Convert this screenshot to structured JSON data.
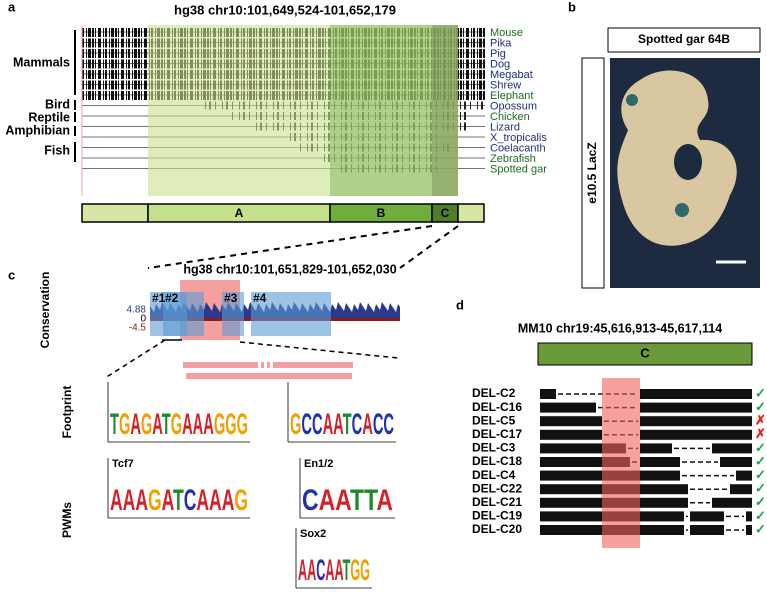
{
  "panel_labels": [
    "a",
    "b",
    "c",
    "d"
  ],
  "a": {
    "title": "hg38 chr10:101,649,524-101,652,179",
    "species": [
      {
        "name": "Mouse",
        "color": "#1e6b1e"
      },
      {
        "name": "Pika",
        "color": "#1f2f7a"
      },
      {
        "name": "Pig",
        "color": "#1f2f7a"
      },
      {
        "name": "Dog",
        "color": "#1f2f7a"
      },
      {
        "name": "Megabat",
        "color": "#1f2f7a"
      },
      {
        "name": "Shrew",
        "color": "#1f2f7a"
      },
      {
        "name": "Elephant",
        "color": "#1e6b1e"
      },
      {
        "name": "Opossum",
        "color": "#1f2f7a"
      },
      {
        "name": "Chicken",
        "color": "#1e6b1e"
      },
      {
        "name": "Lizard",
        "color": "#1f2f7a"
      },
      {
        "name": "X_tropicalis",
        "color": "#1f2f7a"
      },
      {
        "name": "Coelacanth",
        "color": "#1f2f7a"
      },
      {
        "name": "Zebrafish",
        "color": "#1e6b1e"
      },
      {
        "name": "Spotted gar",
        "color": "#1e6b1e"
      }
    ],
    "groups": [
      "Mammals",
      "Bird",
      "Reptile",
      "Amphibian",
      "Fish"
    ],
    "regions": [
      "A",
      "B",
      "C"
    ]
  },
  "b": {
    "title": "Spotted gar 64B",
    "stage": "e10.5 LacZ"
  },
  "c": {
    "title": "hg38 chr10:101,651,829-101,652,030",
    "track_label": "Conservation",
    "scale": [
      4.88,
      0,
      -4.5
    ],
    "elements": [
      "#1",
      "#2",
      "#3",
      "#4"
    ],
    "footprint_label": "Footprint",
    "pwm_label": "PWMs",
    "logos": [
      {
        "sequence": "TGAGATGAAAGGG"
      },
      {
        "sequence": "GCCAATCACC"
      },
      {
        "name": "Tcf7",
        "sequence": "AAAGATCAAAG"
      },
      {
        "name": "En1/2",
        "sequence": "CAATTA"
      },
      {
        "name": "Sox2",
        "sequence": "AACAATGG"
      }
    ]
  },
  "d": {
    "title": "MM10 chr19:45,616,913-45,617,114",
    "region": "C",
    "deletions": [
      {
        "name": "DEL-C2",
        "result": "✓",
        "color": "#1aa34a"
      },
      {
        "name": "DEL-C16",
        "result": "✓",
        "color": "#1aa34a"
      },
      {
        "name": "DEL-C5",
        "result": "✗",
        "color": "#e0201b"
      },
      {
        "name": "DEL-C17",
        "result": "✗",
        "color": "#e0201b"
      },
      {
        "name": "DEL-C3",
        "result": "✓",
        "color": "#1aa34a"
      },
      {
        "name": "DEL-C18",
        "result": "✓",
        "color": "#1aa34a"
      },
      {
        "name": "DEL-C4",
        "result": "✓",
        "color": "#1aa34a"
      },
      {
        "name": "DEL-C22",
        "result": "✓",
        "color": "#1aa34a"
      },
      {
        "name": "DEL-C21",
        "result": "✓",
        "color": "#1aa34a"
      },
      {
        "name": "DEL-C19",
        "result": "✓",
        "color": "#1aa34a"
      },
      {
        "name": "DEL-C20",
        "result": "✓",
        "color": "#1aa34a"
      }
    ]
  }
}
